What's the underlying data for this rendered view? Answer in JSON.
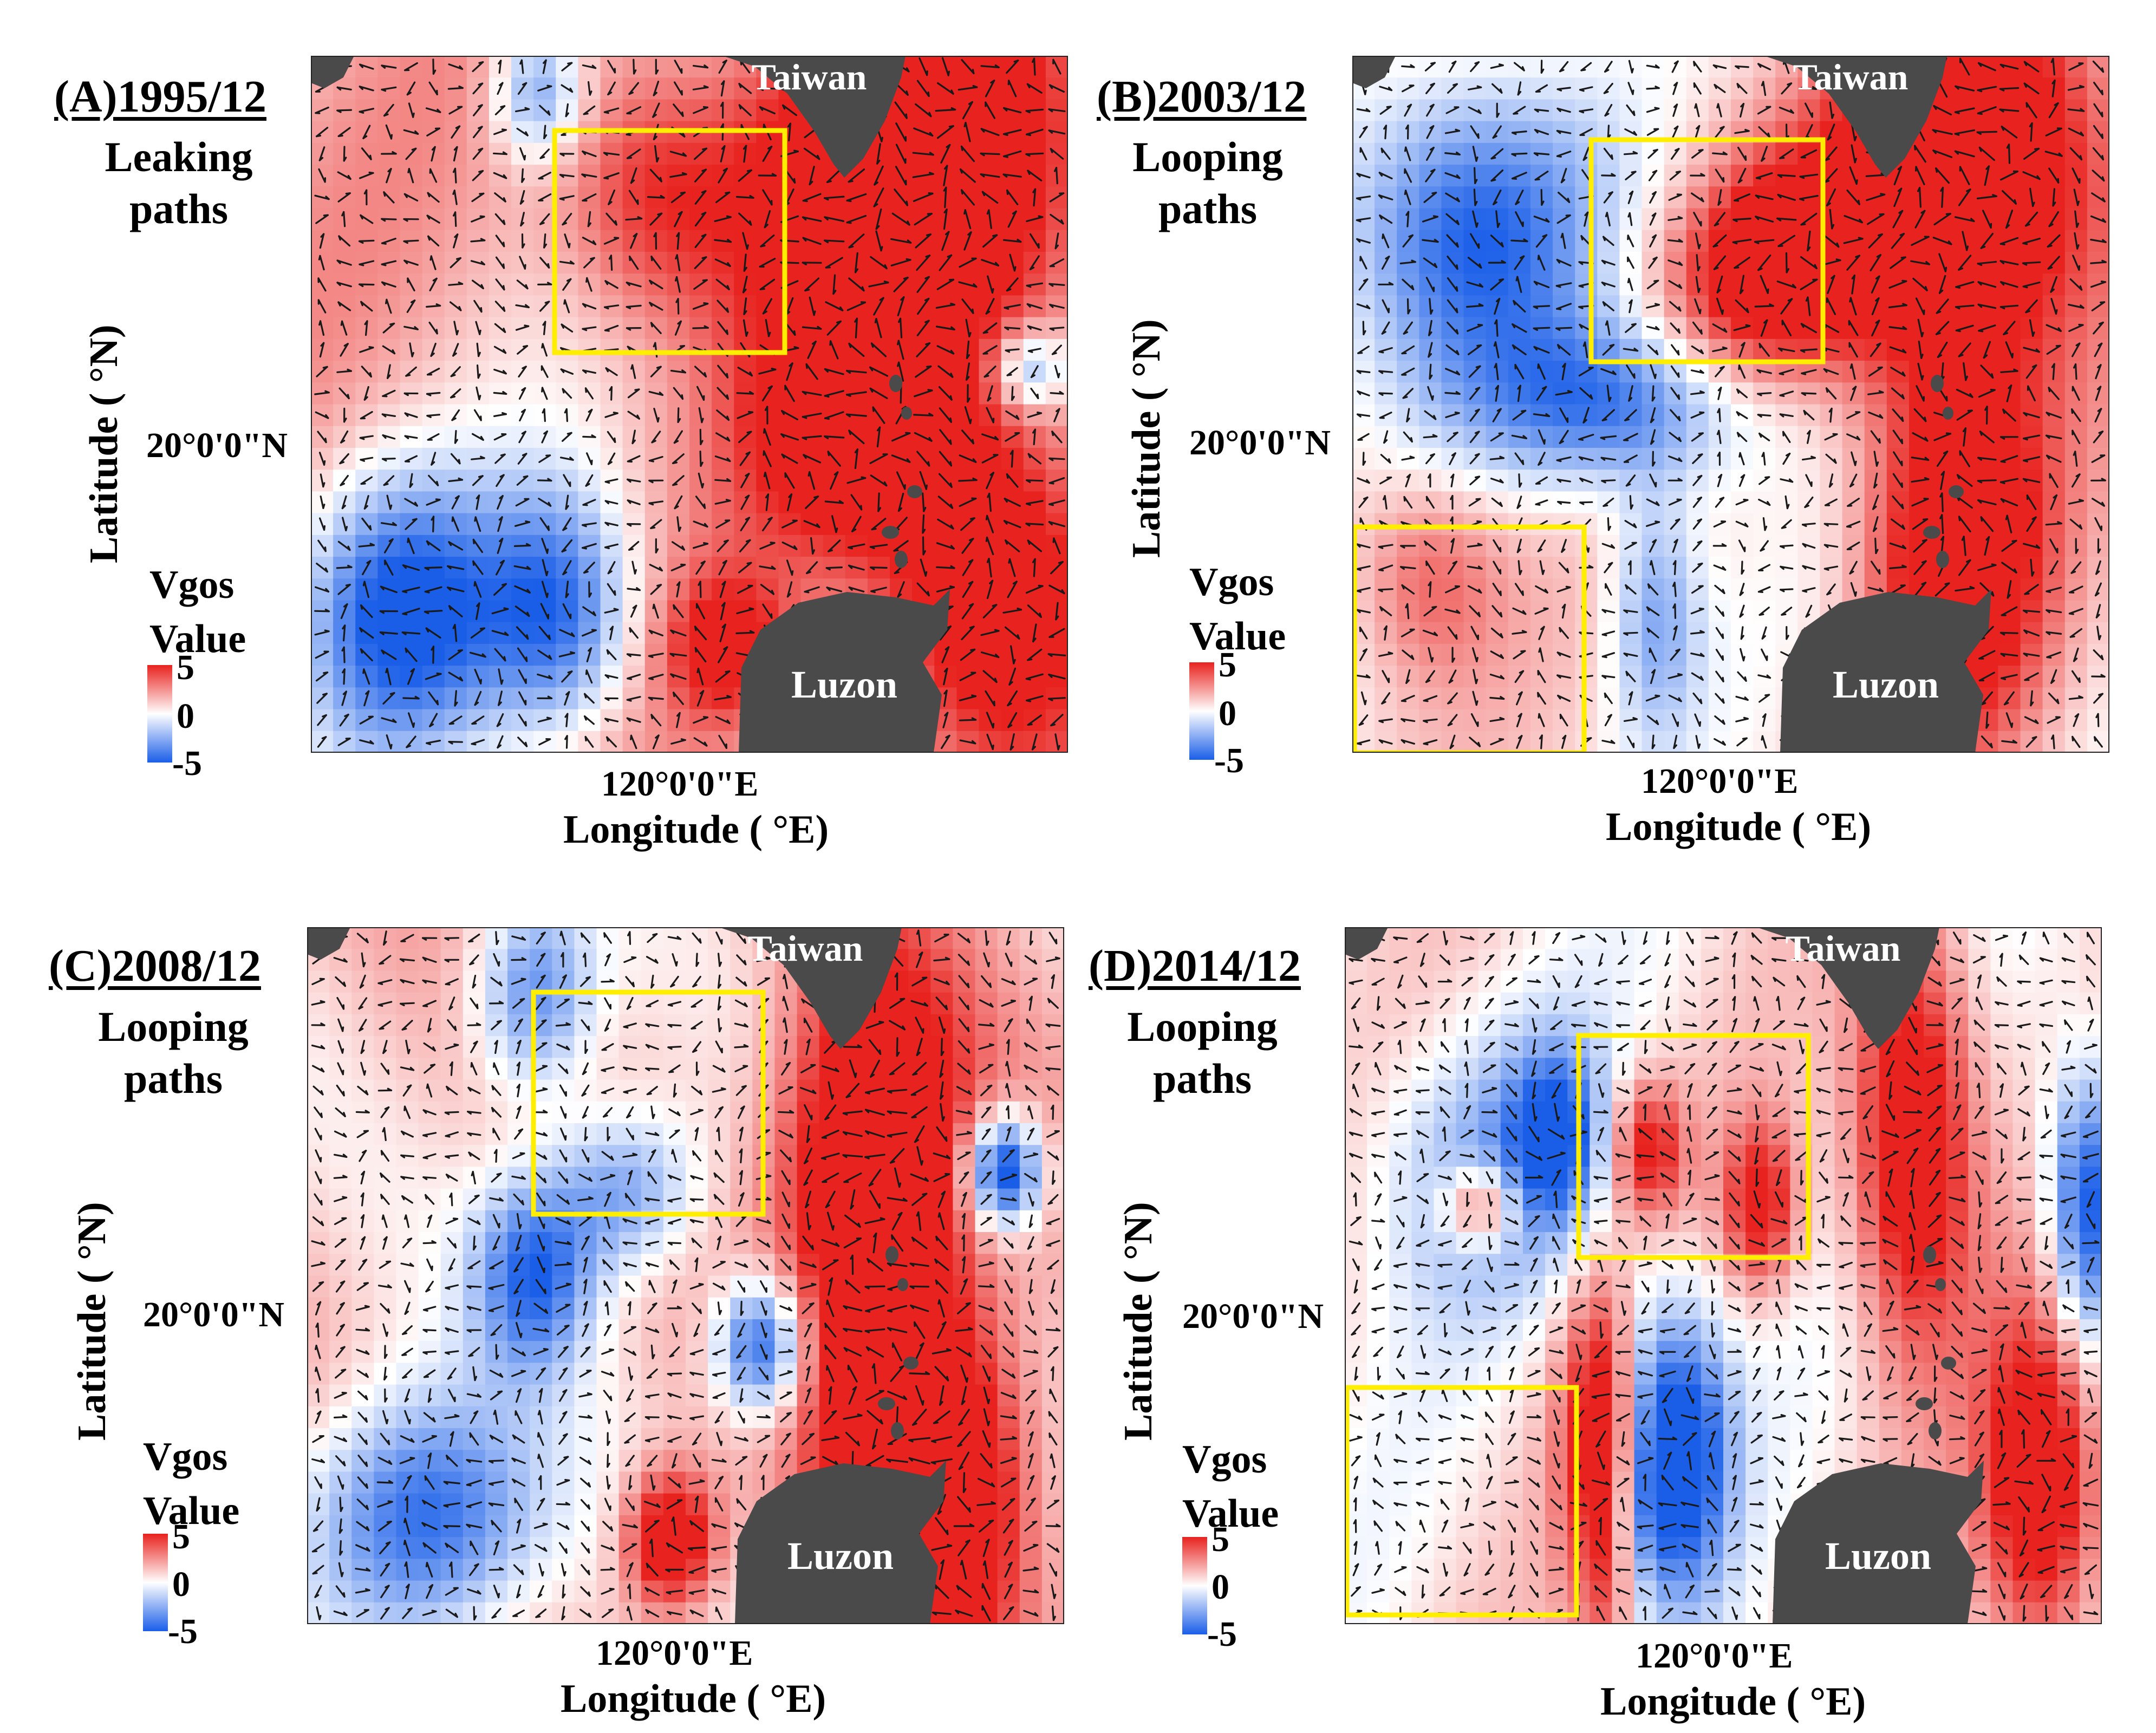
{
  "colors": {
    "high": "#e8221e",
    "zero": "#ffffff",
    "low": "#1a5ee8",
    "land": "#4a4a4a",
    "box": "#ffee00",
    "arrow": "#1a1a1a"
  },
  "common": {
    "xlabel": "Longitude ( °E)",
    "ylabel": "Latitude ( °N)",
    "lon_tick": "120°0'0\"E",
    "lat_tick": "20°0'0\"N",
    "legend_title_1": "Vgos",
    "legend_title_2": "Value",
    "legend_max": "5",
    "legend_mid": "0",
    "legend_min": "-5",
    "label_taiwan": "Taiwan",
    "label_luzon": "Luzon"
  },
  "panels": [
    {
      "id": "A",
      "title": "(A)1995/12",
      "path_label": "Leaking\npaths"
    },
    {
      "id": "B",
      "title": "(B)2003/12",
      "path_label": "Looping\npaths"
    },
    {
      "id": "C",
      "title": "(C)2008/12",
      "path_label": "Looping\npaths"
    },
    {
      "id": "D",
      "title": "(D)2014/12",
      "path_label": "Looping\npaths"
    }
  ]
}
